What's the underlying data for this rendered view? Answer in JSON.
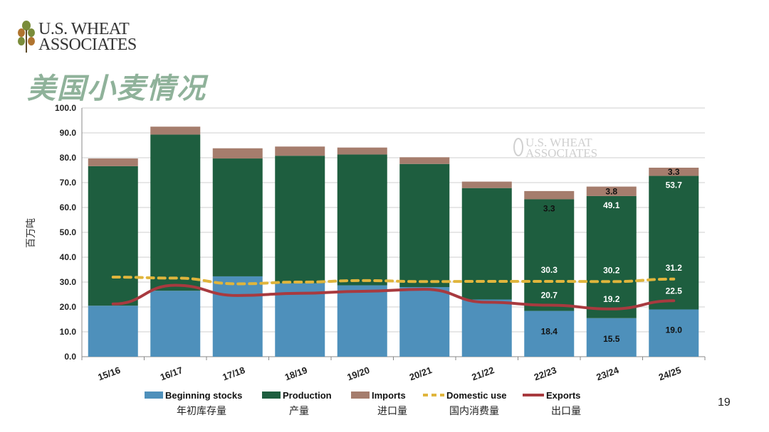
{
  "brand": {
    "line1": "U.S. WHEAT",
    "line2": "ASSOCIATES"
  },
  "page_title": "美国小麦情况",
  "page_number": "19",
  "colors": {
    "beginning_stocks": "#4e90bb",
    "production": "#1e5e3f",
    "imports": "#a57d6d",
    "domestic_use": "#e0b53c",
    "exports": "#a83a3f"
  },
  "chart_data": {
    "type": "bar",
    "stacked": true,
    "categories": [
      "15/16",
      "16/17",
      "17/18",
      "18/19",
      "19/20",
      "20/21",
      "21/22",
      "22/23",
      "23/24",
      "24/25"
    ],
    "ylabel": "百万吨",
    "ylim": [
      0,
      100
    ],
    "yticks": [
      "0.0",
      "10.0",
      "20.0",
      "30.0",
      "40.0",
      "50.0",
      "60.0",
      "70.0",
      "80.0",
      "90.0",
      "100.0"
    ],
    "grid": true,
    "series": [
      {
        "name": "Beginning stocks",
        "name_zh": "年初库存量",
        "kind": "bar",
        "values": [
          20.5,
          26.5,
          32.3,
          29.5,
          28.7,
          28.0,
          23.0,
          18.4,
          15.5,
          19.0
        ]
      },
      {
        "name": "Production",
        "name_zh": "产量",
        "kind": "bar",
        "values": [
          56.1,
          62.8,
          47.4,
          51.3,
          52.6,
          49.5,
          44.8,
          44.9,
          49.1,
          53.7
        ]
      },
      {
        "name": "Imports",
        "name_zh": "进口量",
        "kind": "bar",
        "values": [
          3.1,
          3.2,
          4.1,
          3.7,
          2.8,
          2.7,
          2.6,
          3.3,
          3.8,
          3.3
        ]
      },
      {
        "name": "Domestic use",
        "name_zh": "国内消费量",
        "kind": "line",
        "style": "dashed",
        "values": [
          32.0,
          31.6,
          29.3,
          30.0,
          30.6,
          30.2,
          30.3,
          30.3,
          30.2,
          31.2
        ]
      },
      {
        "name": "Exports",
        "name_zh": "出口量",
        "kind": "line",
        "values": [
          21.2,
          28.7,
          24.6,
          25.5,
          26.3,
          27.1,
          21.9,
          20.7,
          19.2,
          22.5
        ]
      }
    ],
    "data_labels": [
      {
        "category": "22/23",
        "values": {
          "Imports": "3.3",
          "Domestic use": "30.3",
          "Exports": "20.7",
          "Beginning stocks": "18.4"
        }
      },
      {
        "category": "23/24",
        "values": {
          "Imports": "3.8",
          "Production": "49.1",
          "Domestic use": "30.2",
          "Exports": "19.2",
          "Beginning stocks": "15.5"
        }
      },
      {
        "category": "24/25",
        "values": {
          "Imports": "3.3",
          "Production": "53.7",
          "Domestic use": "31.2",
          "Exports": "22.5",
          "Beginning stocks": "19.0"
        }
      }
    ],
    "watermark": {
      "line1": "U.S. WHEAT",
      "line2": "ASSOCIATES"
    },
    "legend_position": "bottom"
  }
}
